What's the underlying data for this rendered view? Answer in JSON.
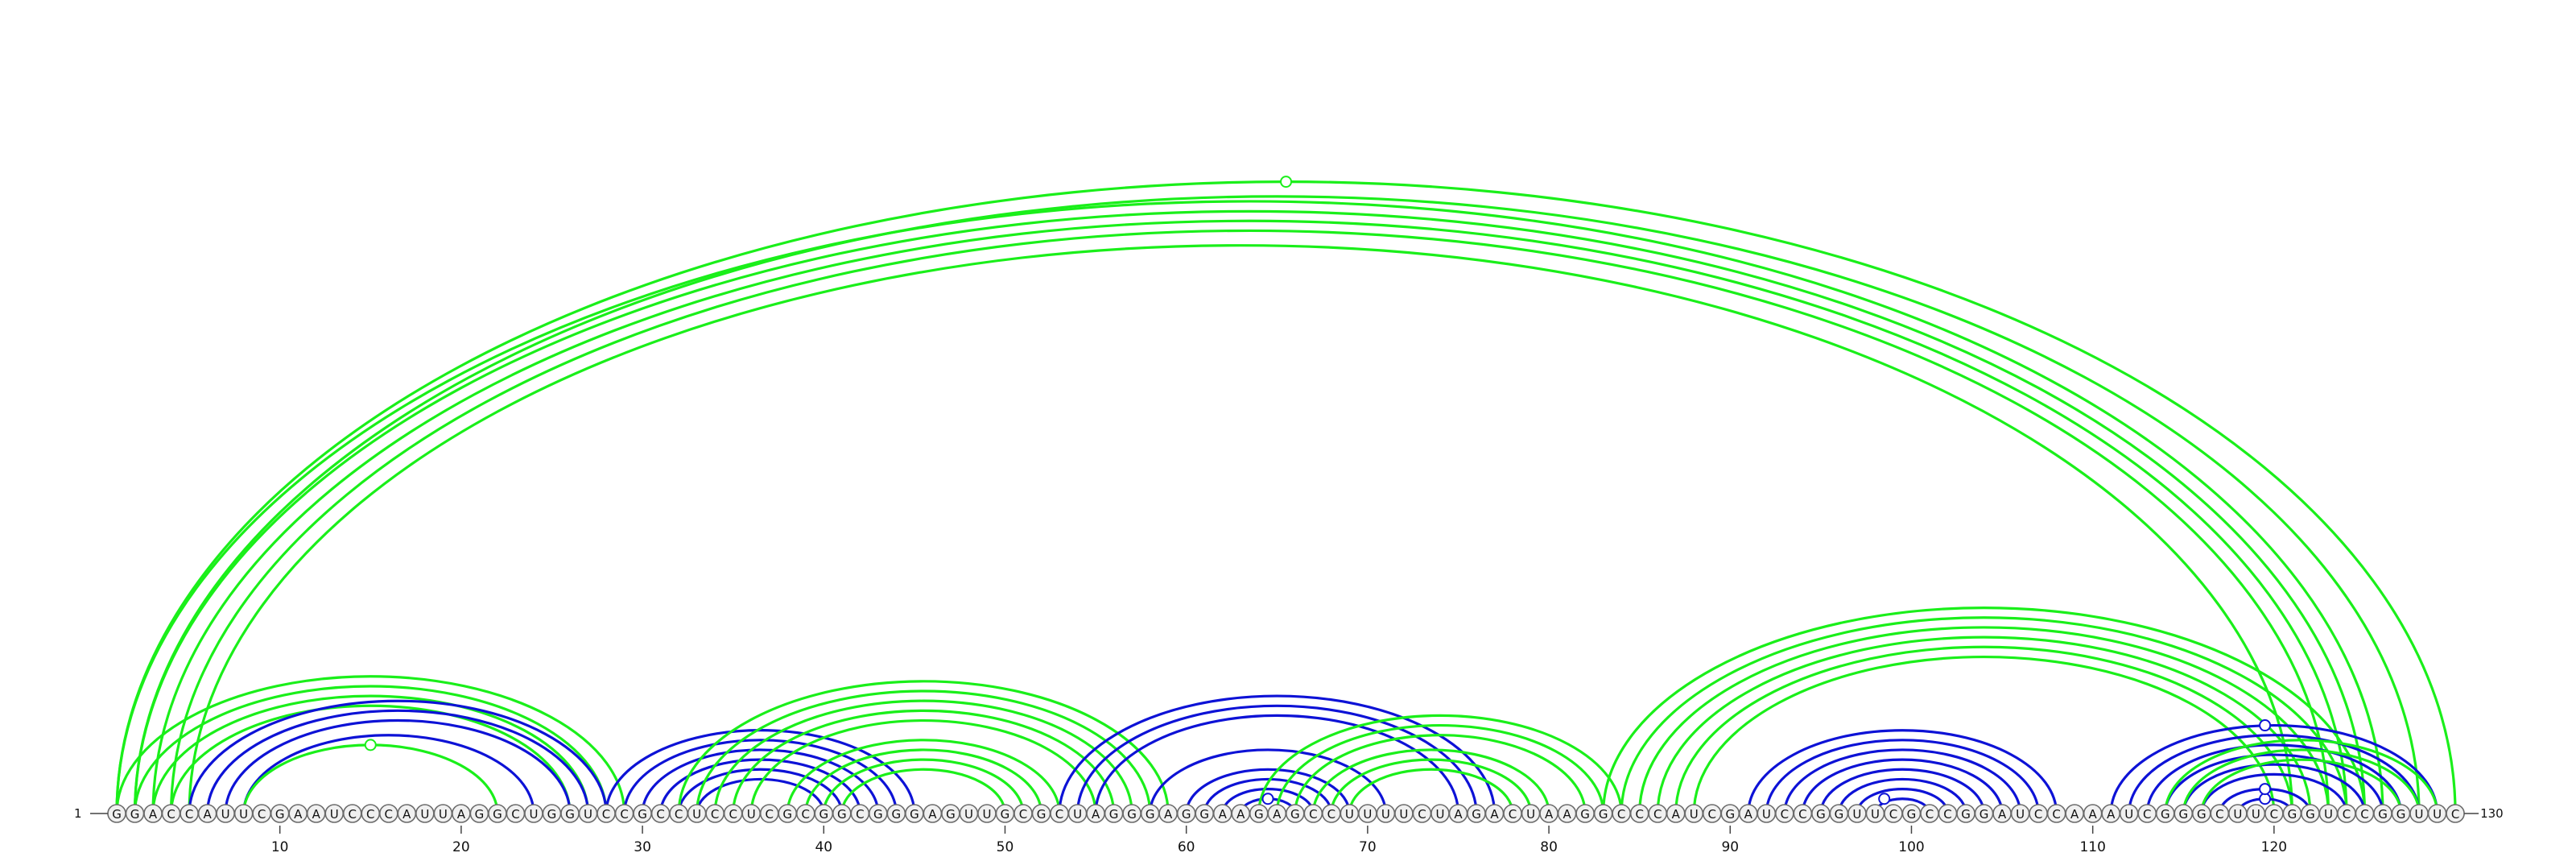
{
  "diagram": {
    "sequence": "GGACCAUUCGAAUCCCAUUAGGCUGGUCCGCCUCCUCGCGGCGGGAGUUGCGCUAGGGAGGAAGAGCCUUUUCUAGACUAAGGCCCAUCGAUCCGGUUCGCCGGAUCCAAAUCGGGCUUCGGUCCGGUUC",
    "start_label": "1",
    "end_label": "130",
    "ticks": [
      10,
      20,
      30,
      40,
      50,
      60,
      70,
      80,
      90,
      100,
      110,
      120
    ],
    "colors": {
      "green": "#1aef1a",
      "blue": "#0d12d6",
      "node_fill": "#f0f0f0",
      "node_stroke": "#6a6a6a"
    },
    "arc_groups": [
      {
        "color": "green",
        "pairs": [
          [
            1,
            126
          ],
          [
            2,
            125
          ],
          [
            3,
            124
          ],
          [
            4,
            123
          ],
          [
            5,
            121
          ]
        ]
      },
      {
        "color": "green",
        "pairs": [
          [
            1,
            130
          ],
          [
            2,
            128
          ]
        ]
      },
      {
        "color": "green",
        "pairs": [
          [
            1,
            29
          ],
          [
            2,
            28
          ],
          [
            3,
            27
          ],
          [
            4,
            26
          ]
        ]
      },
      {
        "color": "blue",
        "pairs": [
          [
            5,
            28
          ],
          [
            6,
            27
          ],
          [
            7,
            26
          ],
          [
            8,
            24
          ]
        ]
      },
      {
        "color": "green",
        "pairs": [
          [
            8,
            22
          ]
        ]
      },
      {
        "color": "blue",
        "pairs": [
          [
            28,
            45
          ],
          [
            29,
            44
          ],
          [
            30,
            43
          ],
          [
            31,
            42
          ],
          [
            32,
            41
          ],
          [
            33,
            40
          ]
        ]
      },
      {
        "color": "green",
        "pairs": [
          [
            32,
            59
          ],
          [
            33,
            58
          ],
          [
            34,
            57
          ],
          [
            35,
            56
          ],
          [
            36,
            55
          ]
        ]
      },
      {
        "color": "green",
        "pairs": [
          [
            38,
            53
          ],
          [
            39,
            52
          ],
          [
            40,
            51
          ],
          [
            41,
            50
          ]
        ]
      },
      {
        "color": "blue",
        "pairs": [
          [
            53,
            77
          ],
          [
            54,
            76
          ],
          [
            55,
            75
          ]
        ]
      },
      {
        "color": "blue",
        "pairs": [
          [
            58,
            71
          ],
          [
            60,
            69
          ],
          [
            61,
            68
          ],
          [
            62,
            67
          ],
          [
            63,
            66
          ]
        ]
      },
      {
        "color": "green",
        "pairs": [
          [
            64,
            84
          ],
          [
            65,
            83
          ],
          [
            66,
            82
          ],
          [
            67,
            80
          ],
          [
            68,
            79
          ],
          [
            69,
            78
          ]
        ]
      },
      {
        "color": "green",
        "pairs": [
          [
            83,
            125
          ],
          [
            84,
            124
          ],
          [
            85,
            123
          ],
          [
            86,
            122
          ],
          [
            87,
            121
          ],
          [
            88,
            120
          ]
        ]
      },
      {
        "color": "blue",
        "pairs": [
          [
            91,
            108
          ],
          [
            92,
            107
          ],
          [
            93,
            106
          ],
          [
            94,
            105
          ],
          [
            95,
            104
          ],
          [
            96,
            103
          ],
          [
            97,
            102
          ],
          [
            98,
            101
          ]
        ]
      },
      {
        "color": "blue",
        "pairs": [
          [
            111,
            129
          ],
          [
            112,
            128
          ],
          [
            113,
            127
          ],
          [
            114,
            126
          ],
          [
            115,
            125
          ],
          [
            116,
            124
          ]
        ]
      },
      {
        "color": "green",
        "pairs": [
          [
            114,
            129
          ],
          [
            115,
            128
          ],
          [
            116,
            127
          ]
        ]
      },
      {
        "color": "blue",
        "pairs": [
          [
            117,
            122
          ],
          [
            118,
            121
          ]
        ]
      }
    ],
    "markers": [
      {
        "color": "green",
        "at": 65.5,
        "pair": [
          1,
          130
        ]
      },
      {
        "color": "green",
        "at": 15,
        "pair": [
          8,
          22
        ]
      },
      {
        "color": "blue",
        "at": 64.5,
        "pair": [
          63,
          66
        ]
      },
      {
        "color": "blue",
        "at": 98.5,
        "pair": [
          98,
          101
        ]
      },
      {
        "color": "blue",
        "at": 119.5,
        "pair": [
          118,
          121
        ]
      },
      {
        "color": "blue",
        "at": 119.5,
        "pair": [
          117,
          122
        ]
      },
      {
        "color": "blue",
        "at": 119.5,
        "pair": [
          111,
          129
        ]
      }
    ]
  }
}
